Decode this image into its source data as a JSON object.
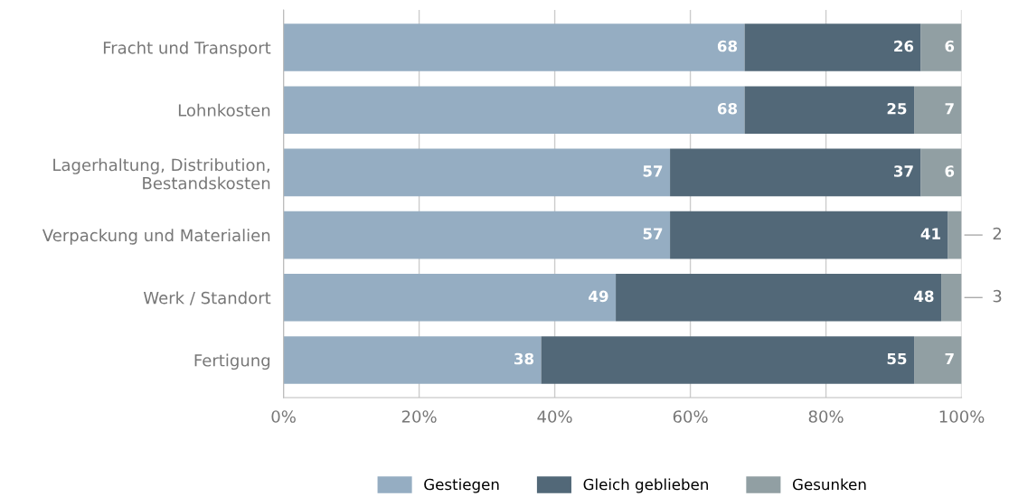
{
  "chart_data": {
    "type": "bar",
    "orientation": "horizontal",
    "stacked": true,
    "data_labels": true,
    "grid": "x",
    "legend": "bottom",
    "categories": [
      "Fracht und Transport",
      "Lohnkosten",
      "Lagerhaltung, Distribution,\nBestandskosten",
      "Verpackung und Materialien",
      "Werk / Standort",
      "Fertigung"
    ],
    "series": [
      {
        "name": "Gestiegen",
        "color": "#95adc2",
        "values": [
          68,
          68,
          57,
          57,
          49,
          38
        ]
      },
      {
        "name": "Gleich geblieben",
        "color": "#526878",
        "values": [
          26,
          25,
          37,
          41,
          48,
          55
        ]
      },
      {
        "name": "Gesunken",
        "color": "#919fa3",
        "values": [
          6,
          7,
          6,
          2,
          3,
          7
        ]
      }
    ],
    "xlim": [
      0,
      100
    ],
    "xticks": [
      {
        "value": 0,
        "label": "0%"
      },
      {
        "value": 20,
        "label": "20%"
      },
      {
        "value": 40,
        "label": "40%"
      },
      {
        "value": 60,
        "label": "60%"
      },
      {
        "value": 80,
        "label": "80%"
      },
      {
        "value": 100,
        "label": "100%"
      }
    ]
  }
}
